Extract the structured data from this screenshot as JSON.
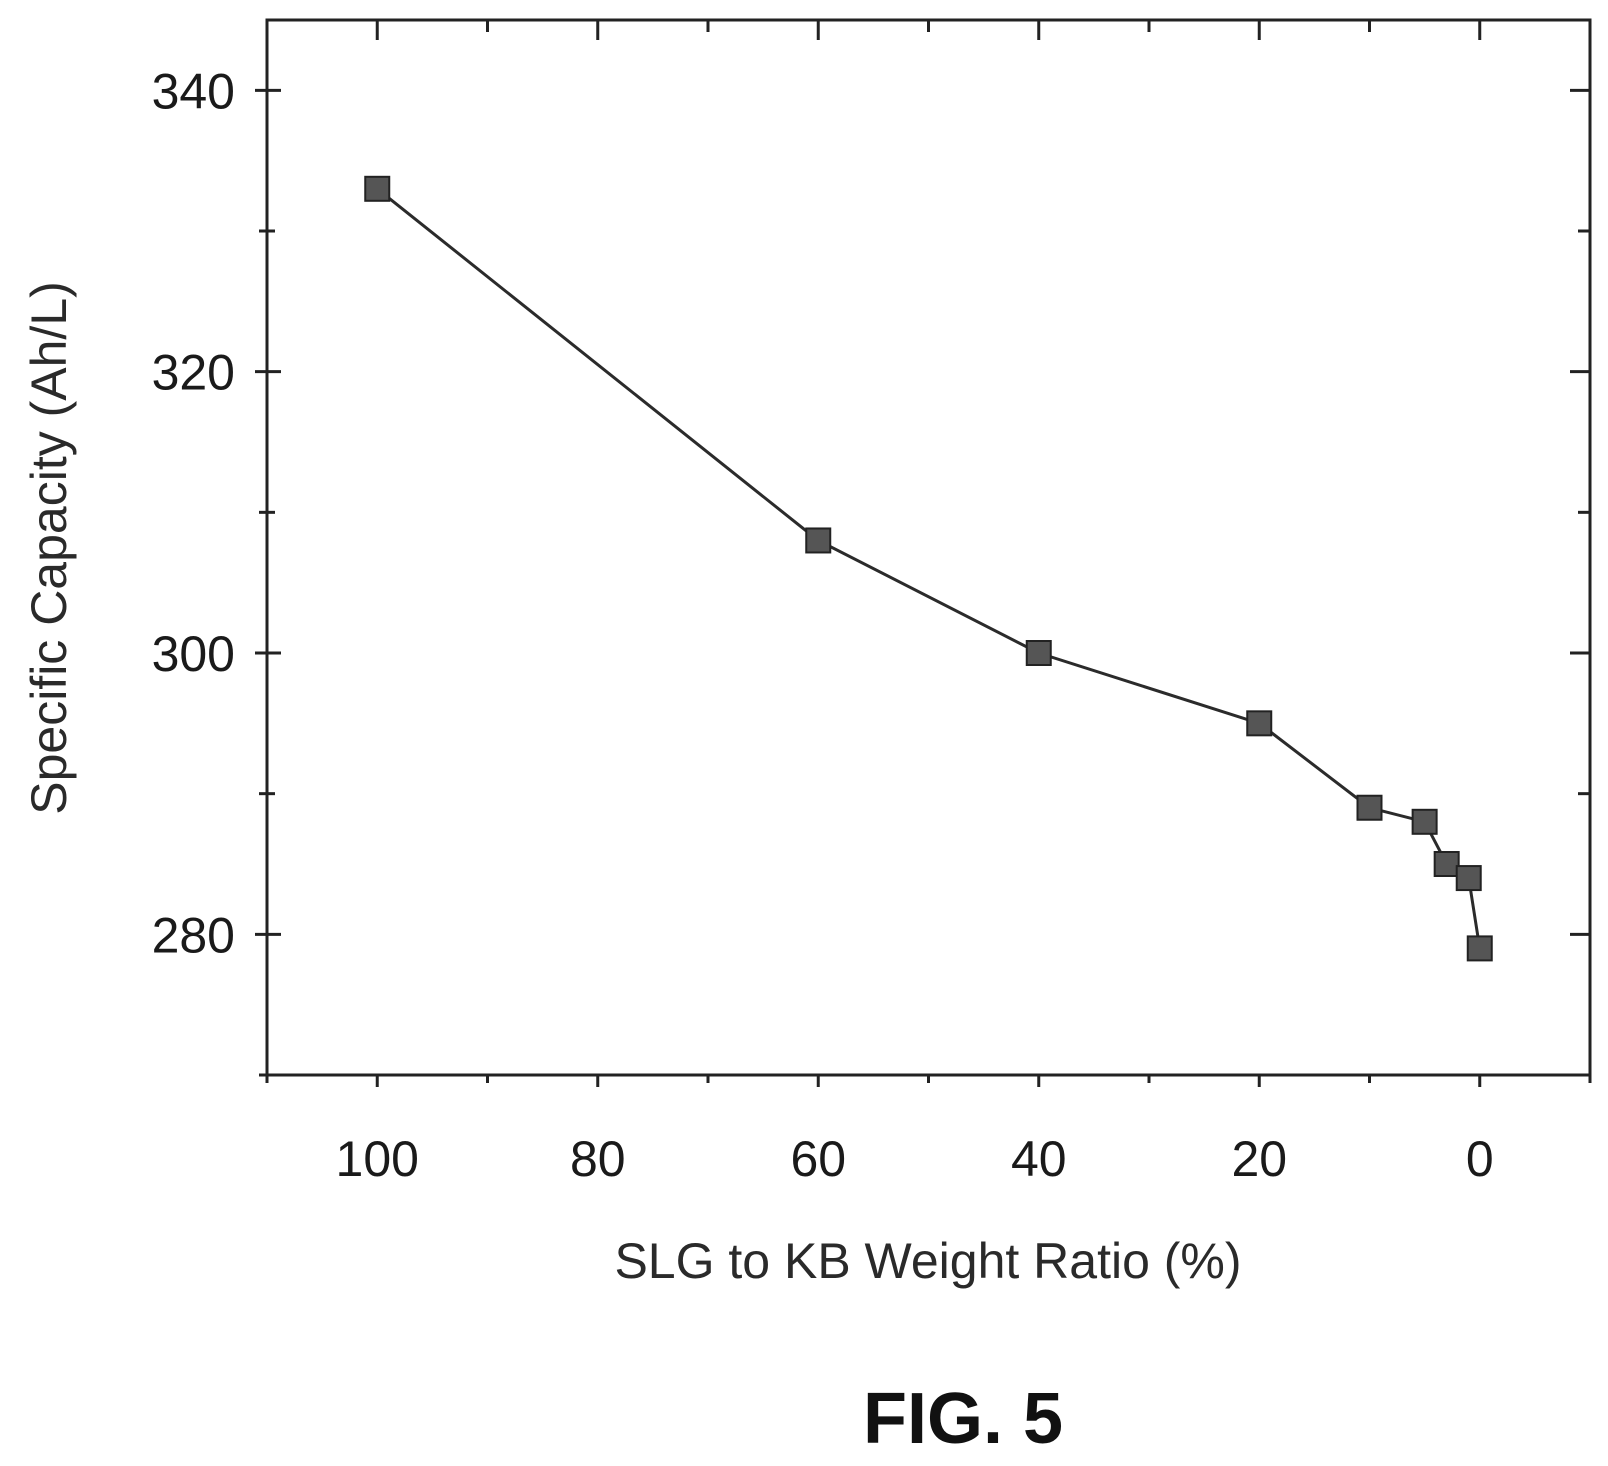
{
  "chart_data": {
    "type": "line",
    "title": "",
    "xlabel": "SLG to KB Weight Ratio (%)",
    "ylabel": "Specific Capacity (Ah/L)",
    "xlim": [
      110,
      -10
    ],
    "ylim": [
      270,
      345
    ],
    "x_reversed": true,
    "x_ticks": [
      100,
      80,
      60,
      40,
      20,
      0
    ],
    "x_tick_labels": [
      "100",
      "80",
      "60",
      "40",
      "20",
      "0"
    ],
    "y_ticks": [
      280,
      300,
      320,
      340
    ],
    "y_tick_labels": [
      "280",
      "300",
      "320",
      "340"
    ],
    "grid": false,
    "marker": "square",
    "series": [
      {
        "x": [
          100,
          60,
          40,
          20,
          10,
          5,
          3,
          1,
          0
        ],
        "y": [
          333,
          308,
          300,
          295,
          289,
          288,
          285,
          284,
          279
        ]
      }
    ]
  },
  "figure_caption": "FIG. 5"
}
